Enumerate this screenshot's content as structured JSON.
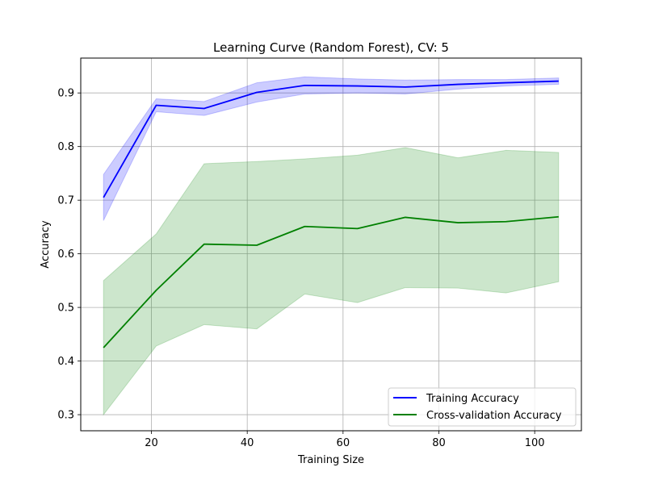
{
  "chart_data": {
    "type": "line",
    "title": "Learning Curve (Random Forest), CV: 5",
    "xlabel": "Training Size",
    "ylabel": "Accuracy",
    "xlim": [
      5.25,
      109.75
    ],
    "ylim": [
      0.27,
      0.965
    ],
    "xticks": [
      20,
      40,
      60,
      80,
      100
    ],
    "yticks": [
      0.3,
      0.4,
      0.5,
      0.6,
      0.7,
      0.8,
      0.9
    ],
    "grid": true,
    "legend_position": "lower-right",
    "x": [
      10,
      21,
      31,
      42,
      52,
      63,
      73,
      84,
      94,
      105
    ],
    "series": [
      {
        "name": "Training Accuracy",
        "color": "#0000ff",
        "band_color": "#0000ff",
        "values": [
          0.705,
          0.877,
          0.871,
          0.901,
          0.914,
          0.913,
          0.911,
          0.916,
          0.919,
          0.922
        ],
        "upper": [
          0.748,
          0.889,
          0.884,
          0.919,
          0.93,
          0.926,
          0.924,
          0.925,
          0.925,
          0.928
        ],
        "lower": [
          0.662,
          0.865,
          0.858,
          0.883,
          0.898,
          0.9,
          0.898,
          0.907,
          0.913,
          0.916
        ]
      },
      {
        "name": "Cross-validation Accuracy",
        "color": "#008000",
        "band_color": "#008000",
        "values": [
          0.425,
          0.532,
          0.618,
          0.616,
          0.651,
          0.647,
          0.668,
          0.658,
          0.66,
          0.669
        ],
        "upper": [
          0.55,
          0.637,
          0.768,
          0.772,
          0.777,
          0.784,
          0.798,
          0.779,
          0.793,
          0.789
        ],
        "lower": [
          0.3,
          0.428,
          0.468,
          0.46,
          0.525,
          0.509,
          0.537,
          0.536,
          0.527,
          0.548
        ]
      }
    ]
  }
}
